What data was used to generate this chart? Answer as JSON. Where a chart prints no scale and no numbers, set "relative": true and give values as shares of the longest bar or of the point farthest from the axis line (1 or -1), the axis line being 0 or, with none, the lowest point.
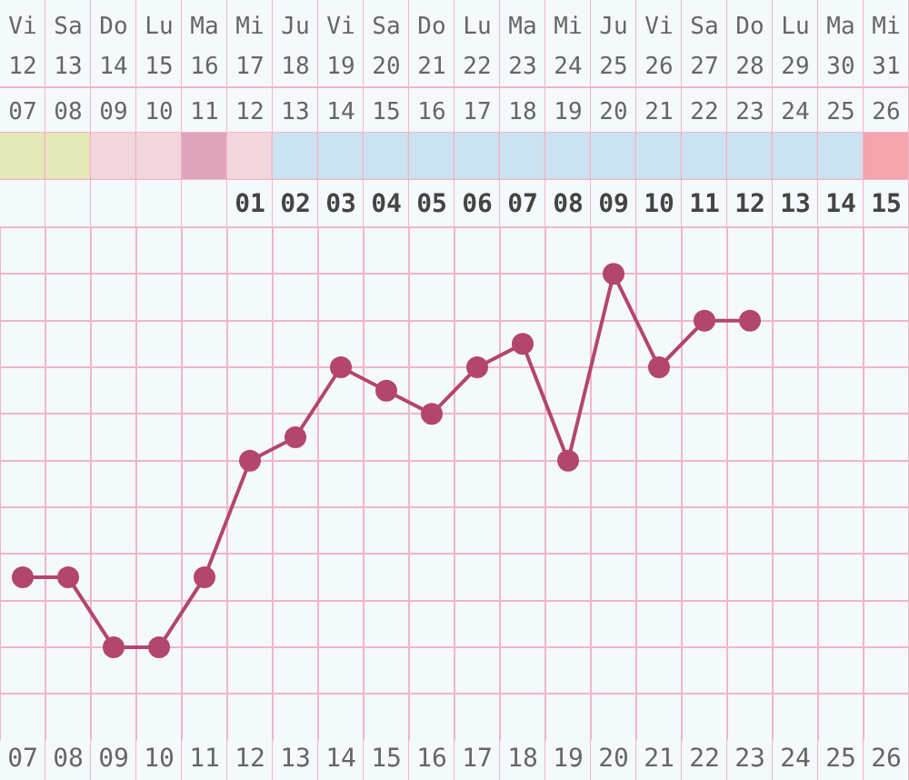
{
  "chart_data": [
    {
      "type": "bar",
      "relative": true,
      "categories": [
        "Vi 12",
        "Sa 13",
        "Do 14",
        "Lu 15",
        "Ma 16",
        "Mi 17",
        "Ju 18",
        "Vi 19",
        "Sa 20",
        "Do 21",
        "Lu 22",
        "Ma 23",
        "Mi 24",
        "Ju 25",
        "Vi 26",
        "Sa 27",
        "Do 28",
        "Lu 29",
        "Ma 30",
        "Mi 31"
      ],
      "x2lim": [
        6.5,
        26.5
      ],
      "x2ticks": [
        {
          "value": 7,
          "label": "07"
        },
        {
          "value": 8,
          "label": "08"
        },
        {
          "value": 9,
          "label": "09"
        },
        10,
        11,
        12,
        13,
        14,
        15,
        16,
        17,
        18,
        19,
        20,
        21,
        22,
        23,
        24,
        25,
        26
      ],
      "values": [
        1,
        1,
        1,
        1,
        1,
        1,
        1,
        1,
        1,
        1,
        1,
        1,
        1,
        1,
        1,
        1,
        1,
        1,
        1,
        1
      ],
      "colors": [
        "#e2e8b6",
        "#e2e8b6",
        "#f2d6de",
        "#f2d6de",
        "#dea4b9",
        "#f2d6de",
        "#cbe2f0",
        "#cbe2f0",
        "#cbe2f0",
        "#cbe2f0",
        "#cbe2f0",
        "#cbe2f0",
        "#cbe2f0",
        "#cbe2f0",
        "#cbe2f0",
        "#cbe2f0",
        "#cbe2f0",
        "#cbe2f0",
        "#cbe2f0",
        "#f4a4ac"
      ]
    },
    {
      "type": "line",
      "categories": [
        "07",
        "08",
        "09",
        "10",
        "11",
        "12",
        "13",
        "14",
        "15",
        "16",
        "17",
        "18",
        "19",
        "20",
        "21",
        "22",
        "23",
        "24",
        "25",
        "26"
      ],
      "relative": true,
      "grid": true,
      "marker": "circle",
      "x2lim": [
        -4.5,
        15.5
      ],
      "x2ticks": [
        {
          "value": 1,
          "label": "01"
        },
        {
          "value": 2,
          "label": "02"
        },
        {
          "value": 3,
          "label": "03"
        },
        {
          "value": 4,
          "label": "04"
        },
        {
          "value": 5,
          "label": "05"
        },
        {
          "value": 6,
          "label": "06"
        },
        {
          "value": 7,
          "label": "07"
        },
        {
          "value": 8,
          "label": "08"
        },
        {
          "value": 9,
          "label": "09"
        },
        10,
        11,
        12,
        13,
        14,
        15
      ],
      "series": [
        {
          "color": "#b3466e",
          "values": [
            0.1875,
            0.1875,
            0,
            0,
            0.1875,
            0.5,
            0.5625,
            0.75,
            0.6875,
            0.625,
            0.75,
            0.8125,
            0.5,
            1,
            0.75,
            0.875,
            0.875,
            null,
            null,
            null
          ]
        }
      ]
    }
  ]
}
